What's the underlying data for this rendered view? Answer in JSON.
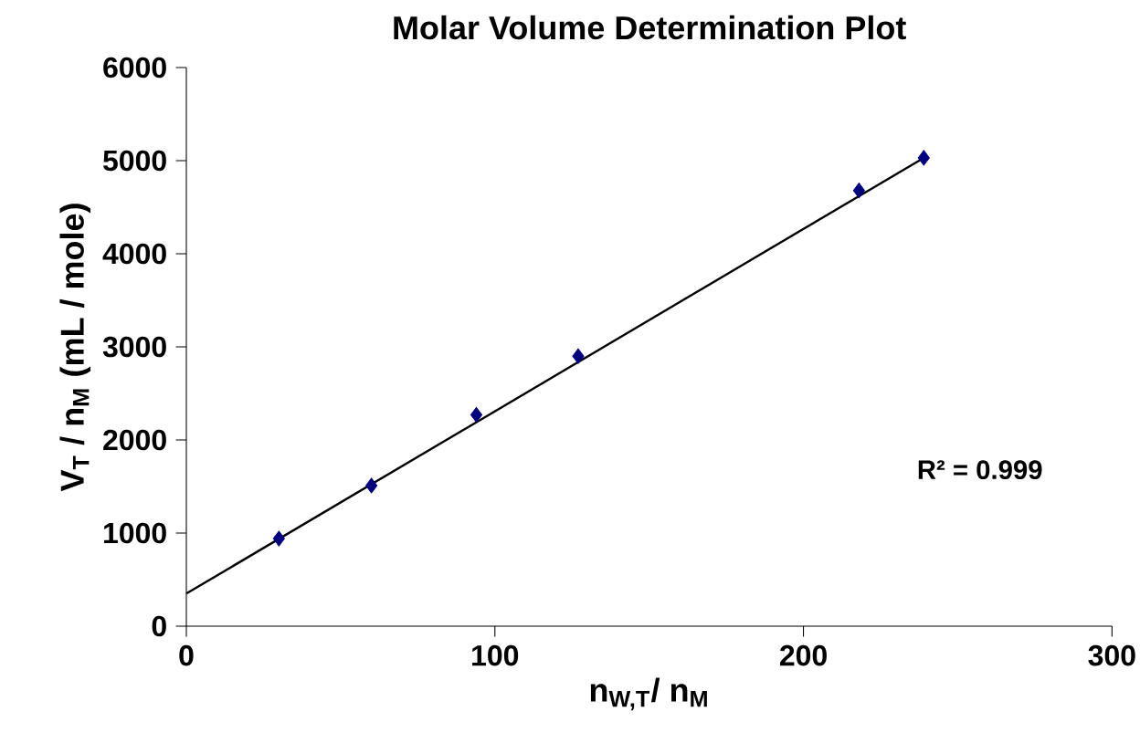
{
  "chart_data": {
    "type": "scatter",
    "title": "Molar Volume Determination Plot",
    "xlabel": "n$_{W,T}$/ n$_{M}$",
    "ylabel": "V$_{T}$ / n$_{M}$  (mL / mole)",
    "series": [
      {
        "color": "#000080",
        "marker": "diamond",
        "x": [
          30,
          60,
          94,
          127,
          218,
          239
        ],
        "values": [
          940,
          1510,
          2270,
          2900,
          4680,
          5030
        ]
      },
      {
        "type": "line",
        "color": "#000000",
        "line_style": "solid",
        "marker": "none",
        "x": [
          0,
          240
        ],
        "values": [
          350,
          5050
        ]
      }
    ],
    "xlim": [
      0,
      300
    ],
    "ylim": [
      0,
      6000
    ],
    "xticks": [
      0,
      100,
      200,
      300
    ],
    "yticks": [
      0,
      1000,
      2000,
      3000,
      4000,
      5000,
      6000
    ],
    "grid": false,
    "annotations": [
      "R² = 0.999"
    ]
  }
}
